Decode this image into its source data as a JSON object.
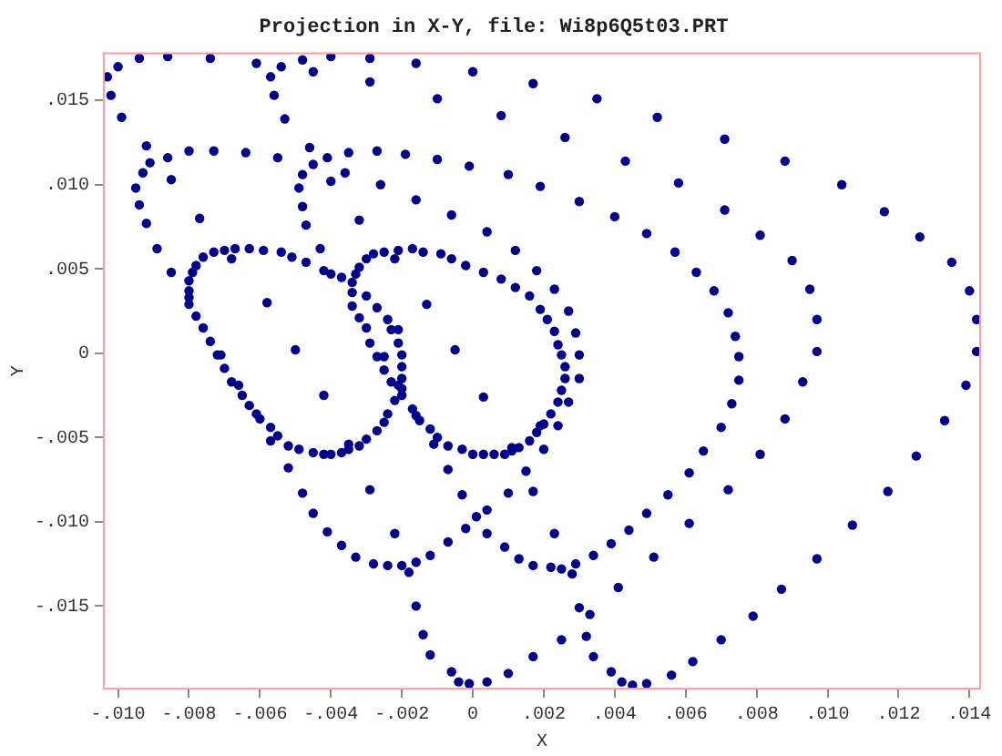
{
  "chart_data": {
    "type": "scatter",
    "title": "Projection in X-Y, file: Wi8p6Q5t03.PRT",
    "xlabel": "X",
    "ylabel": "Y",
    "color": "#00008b",
    "marker": "circle",
    "grid": false,
    "legend": false,
    "xlim": [
      -0.0104,
      0.0143
    ],
    "ylim": [
      -0.0199,
      0.0178
    ],
    "xticks": [
      {
        "value": -0.01,
        "label": "-.010"
      },
      {
        "value": -0.008,
        "label": "-.008"
      },
      {
        "value": -0.006,
        "label": "-.006"
      },
      {
        "value": -0.004,
        "label": "-.004"
      },
      {
        "value": -0.002,
        "label": "-.002"
      },
      0,
      {
        "value": 0.002,
        "label": ".002"
      },
      {
        "value": 0.004,
        "label": ".004"
      },
      {
        "value": 0.006,
        "label": ".006"
      },
      {
        "value": 0.008,
        "label": ".008"
      },
      {
        "value": 0.01,
        "label": ".010"
      },
      {
        "value": 0.012,
        "label": ".012"
      },
      {
        "value": 0.014,
        "label": ".014"
      }
    ],
    "yticks": [
      {
        "value": -0.015,
        "label": "-.015"
      },
      {
        "value": -0.01,
        "label": "-.010"
      },
      {
        "value": -0.005,
        "label": "-.005"
      },
      0,
      {
        "value": 0.005,
        "label": ".005"
      },
      {
        "value": 0.01,
        "label": ".010"
      },
      {
        "value": 0.015,
        "label": ".015"
      }
    ],
    "x": [
      -0.0103,
      -0.01,
      -0.0094,
      -0.0086,
      -0.0074,
      -0.0061,
      -0.0057,
      -0.0056,
      -0.0053,
      -0.0054,
      -0.0048,
      -0.0045,
      -0.004,
      -0.0029,
      -0.0029,
      -0.0016,
      -0.001,
      0,
      0.0008,
      0.0017,
      -0.0102,
      -0.0099,
      -0.0092,
      -0.0091,
      -0.0093,
      -0.0095,
      -0.0094,
      -0.0092,
      -0.0089,
      -0.0085,
      -0.0086,
      -0.008,
      -0.0073,
      -0.0064,
      -0.0055,
      -0.0046,
      -0.0045,
      -0.0048,
      -0.0049,
      -0.0048,
      -0.0047,
      -0.0043,
      -0.0085,
      -0.0077,
      -0.0041,
      -0.0035,
      -0.0027,
      -0.0019,
      -0.001,
      -0.0001,
      0.001,
      0.0019,
      -0.0036,
      -0.004,
      -0.0026,
      -0.0016,
      -0.0006,
      0.0004,
      0.0012,
      -0.0032,
      -0.0076,
      -0.0073,
      -0.007,
      -0.0067,
      -0.0063,
      -0.0059,
      -0.0054,
      -0.0051,
      -0.0047,
      -0.0042,
      -0.004,
      -0.0037,
      -0.0068,
      -0.0078,
      -0.0079,
      -0.008,
      -0.008,
      -0.008,
      -0.008,
      -0.0078,
      -0.0076,
      -0.0074,
      -0.0072,
      -0.0071,
      -0.007,
      -0.0068,
      -0.0066,
      -0.0065,
      -0.0063,
      -0.0061,
      -0.006,
      -0.0057,
      -0.0057,
      -0.0055,
      -0.0052,
      -0.0049,
      -0.0045,
      -0.0042,
      -0.004,
      -0.0037,
      -0.0035,
      -0.0035,
      -0.0032,
      -0.003,
      -0.0027,
      -0.0025,
      -0.0024,
      -0.0022,
      -0.0021,
      -0.002,
      -0.002,
      -0.002,
      -0.002,
      -0.002,
      -0.0021,
      -0.0021,
      -0.0023,
      -0.0058,
      -0.005,
      -0.0042,
      -0.0033,
      -0.0032,
      -0.003,
      -0.0028,
      -0.0025,
      -0.0021,
      -0.0017,
      -0.0014,
      -0.0009,
      -0.0006,
      -0.0002,
      0.0003,
      0.0008,
      0.0012,
      0.0016,
      0.0019,
      0.0018,
      -0.0022,
      -0.0034,
      -0.0034,
      -0.0034,
      -0.003,
      -0.0027,
      -0.0024,
      -0.0032,
      -0.003,
      -0.0029,
      -0.0027,
      -0.0025,
      -0.0025,
      -0.0023,
      -0.0013,
      -0.0005,
      0.0035,
      0.0052,
      0.0071,
      0.0088,
      0.0104,
      0.0116,
      0.0126,
      0.0135,
      0.014,
      0.0142,
      0.0142,
      0.0026,
      0.0043,
      0.0058,
      0.0071,
      0.0081,
      0.009,
      0.0095,
      0.0097,
      0.0097,
      0.0093,
      0.003,
      0.004,
      0.0049,
      0.0057,
      0.0063,
      0.0068,
      0.0072,
      0.0074,
      0.0075,
      0.0075,
      0.0023,
      0.0021,
      0.0023,
      0.0024,
      0.0025,
      0.0026,
      0.0026,
      0.0027,
      0.0029,
      0.003,
      0.003,
      -0.0029,
      0.0003,
      -0.0052,
      -0.0048,
      -0.0045,
      -0.0041,
      -0.0037,
      -0.0033,
      -0.0028,
      -0.0024,
      -0.002,
      -0.0018,
      -0.0016,
      -0.0012,
      -0.0007,
      -0.0002,
      0.0001,
      0.0004,
      0.0004,
      0.0009,
      0.0013,
      0.0017,
      -0.0022,
      -0.0003,
      -0.0007,
      0.001,
      0.0015,
      0.0017,
      -0.0016,
      -0.0014,
      -0.0012,
      -0.0006,
      -0.0004,
      -0.0001,
      0.0004,
      0.001,
      0.0017,
      -0.0017,
      -0.0016,
      -0.0015,
      -0.0012,
      -0.0011,
      -0.001,
      -0.0007,
      -0.0003,
      0,
      0.0003,
      0.0006,
      0.0009,
      0.0011,
      0.0011,
      0.0013,
      0.0016,
      0.0018,
      0.0019,
      0.0025,
      0.0024,
      0.0027,
      0.0022,
      0.002,
      0.0024,
      0.002,
      0.0073,
      0.007,
      0.0065,
      0.0061,
      0.0055,
      0.0049,
      0.0044,
      0.0039,
      0.0034,
      0.0029,
      0.0028,
      0.0025,
      0.0022,
      0.0023,
      0.0088,
      0.0081,
      0.0072,
      0.0061,
      0.0051,
      0.0041,
      0.0033,
      0.0032,
      0.003,
      0.0034,
      0.0025,
      0.0039,
      0.0042,
      0.0045,
      0.0049,
      0.0056,
      0.0062,
      0.007,
      0.0079,
      0.0087,
      0.0097,
      0.0107,
      0.0117,
      0.0125,
      0.0133,
      0.0139
    ],
    "values": [
      0.0164,
      0.017,
      0.0175,
      0.0176,
      0.0175,
      0.0172,
      0.0164,
      0.0153,
      0.0139,
      0.017,
      0.0174,
      0.0167,
      0.0176,
      0.0175,
      0.0161,
      0.0172,
      0.0151,
      0.0167,
      0.0141,
      0.016,
      0.0153,
      0.014,
      0.0123,
      0.0113,
      0.0107,
      0.0098,
      0.0088,
      0.0077,
      0.0062,
      0.0048,
      0.0116,
      0.012,
      0.012,
      0.0119,
      0.0116,
      0.0122,
      0.0112,
      0.0106,
      0.0098,
      0.0087,
      0.0076,
      0.0062,
      0.0103,
      0.008,
      0.0116,
      0.0119,
      0.012,
      0.0118,
      0.0115,
      0.0111,
      0.0106,
      0.0099,
      0.0107,
      0.0102,
      0.01,
      0.0091,
      0.0082,
      0.0072,
      0.0061,
      0.0079,
      0.0057,
      0.006,
      0.0061,
      0.0062,
      0.0062,
      0.0061,
      0.006,
      0.0057,
      0.0054,
      0.0049,
      0.0047,
      0.0045,
      0.0056,
      0.0052,
      0.0048,
      0.0043,
      0.0037,
      0.0033,
      0.0029,
      0.0022,
      0.0015,
      0.0007,
      -0.0001,
      -0.0001,
      -0.0009,
      -0.0017,
      -0.0019,
      -0.0025,
      -0.0031,
      -0.0036,
      -0.0039,
      -0.0044,
      -0.0052,
      -0.0049,
      -0.0055,
      -0.0057,
      -0.0059,
      -0.006,
      -0.006,
      -0.0059,
      -0.0054,
      -0.0057,
      -0.0055,
      -0.0051,
      -0.0046,
      -0.0041,
      -0.0036,
      -0.0028,
      -0.0019,
      -0.0021,
      -0.0025,
      -0.0015,
      -0.0008,
      -0.0001,
      0.0006,
      0.0014,
      0.0014,
      0.003,
      0.0002,
      -0.0025,
      0.0047,
      0.0051,
      0.0056,
      0.0059,
      0.006,
      0.0061,
      0.0062,
      0.006,
      0.0059,
      0.0056,
      0.0052,
      0.0048,
      0.0044,
      0.0039,
      0.0034,
      0.0026,
      0.0049,
      0.0056,
      0.0042,
      0.0036,
      0.0028,
      0.0034,
      0.0027,
      0.002,
      0.0021,
      0.0015,
      0.0006,
      -0.0002,
      -0.0002,
      -0.001,
      -0.0017,
      0.0029,
      0.0002,
      0.0151,
      0.014,
      0.0127,
      0.0114,
      0.01,
      0.0084,
      0.0069,
      0.0054,
      0.0037,
      0.002,
      0.0001,
      0.0128,
      0.0114,
      0.0101,
      0.0085,
      0.007,
      0.0055,
      0.0038,
      0.002,
      0.0001,
      -0.0017,
      0.009,
      0.0081,
      0.0071,
      0.006,
      0.0048,
      0.0037,
      0.0024,
      0.001,
      -0.0002,
      -0.0016,
      0.0038,
      0.002,
      0.0013,
      0.0005,
      -0.0001,
      -0.0008,
      -0.0015,
      0.0025,
      0.0012,
      -0.0001,
      -0.0015,
      -0.0081,
      -0.0026,
      -0.0068,
      -0.0083,
      -0.0095,
      -0.0106,
      -0.0114,
      -0.0121,
      -0.0125,
      -0.0126,
      -0.0126,
      -0.013,
      -0.0124,
      -0.012,
      -0.0112,
      -0.0104,
      -0.0097,
      -0.0093,
      -0.0107,
      -0.0115,
      -0.0122,
      -0.0126,
      -0.0107,
      -0.0084,
      -0.0069,
      -0.0083,
      -0.007,
      -0.0082,
      -0.015,
      -0.0167,
      -0.0179,
      -0.0189,
      -0.0195,
      -0.0196,
      -0.0195,
      -0.019,
      -0.018,
      -0.0033,
      -0.0037,
      -0.004,
      -0.0045,
      -0.0054,
      -0.005,
      -0.0055,
      -0.0057,
      -0.006,
      -0.006,
      -0.006,
      -0.006,
      -0.0056,
      -0.0058,
      -0.0056,
      -0.0052,
      -0.0047,
      -0.0043,
      -0.0022,
      -0.0029,
      -0.0029,
      -0.0036,
      -0.0042,
      -0.0043,
      -0.0057,
      -0.003,
      -0.0044,
      -0.0058,
      -0.0071,
      -0.0084,
      -0.0095,
      -0.0105,
      -0.0113,
      -0.012,
      -0.0125,
      -0.0131,
      -0.0128,
      -0.0127,
      -0.0107,
      -0.0039,
      -0.006,
      -0.0081,
      -0.0101,
      -0.0121,
      -0.0139,
      -0.0155,
      -0.0168,
      -0.0151,
      -0.018,
      -0.017,
      -0.0189,
      -0.0195,
      -0.0197,
      -0.0196,
      -0.0191,
      -0.0183,
      -0.017,
      -0.0156,
      -0.014,
      -0.0122,
      -0.0102,
      -0.0082,
      -0.0061,
      -0.004,
      -0.0019
    ]
  }
}
